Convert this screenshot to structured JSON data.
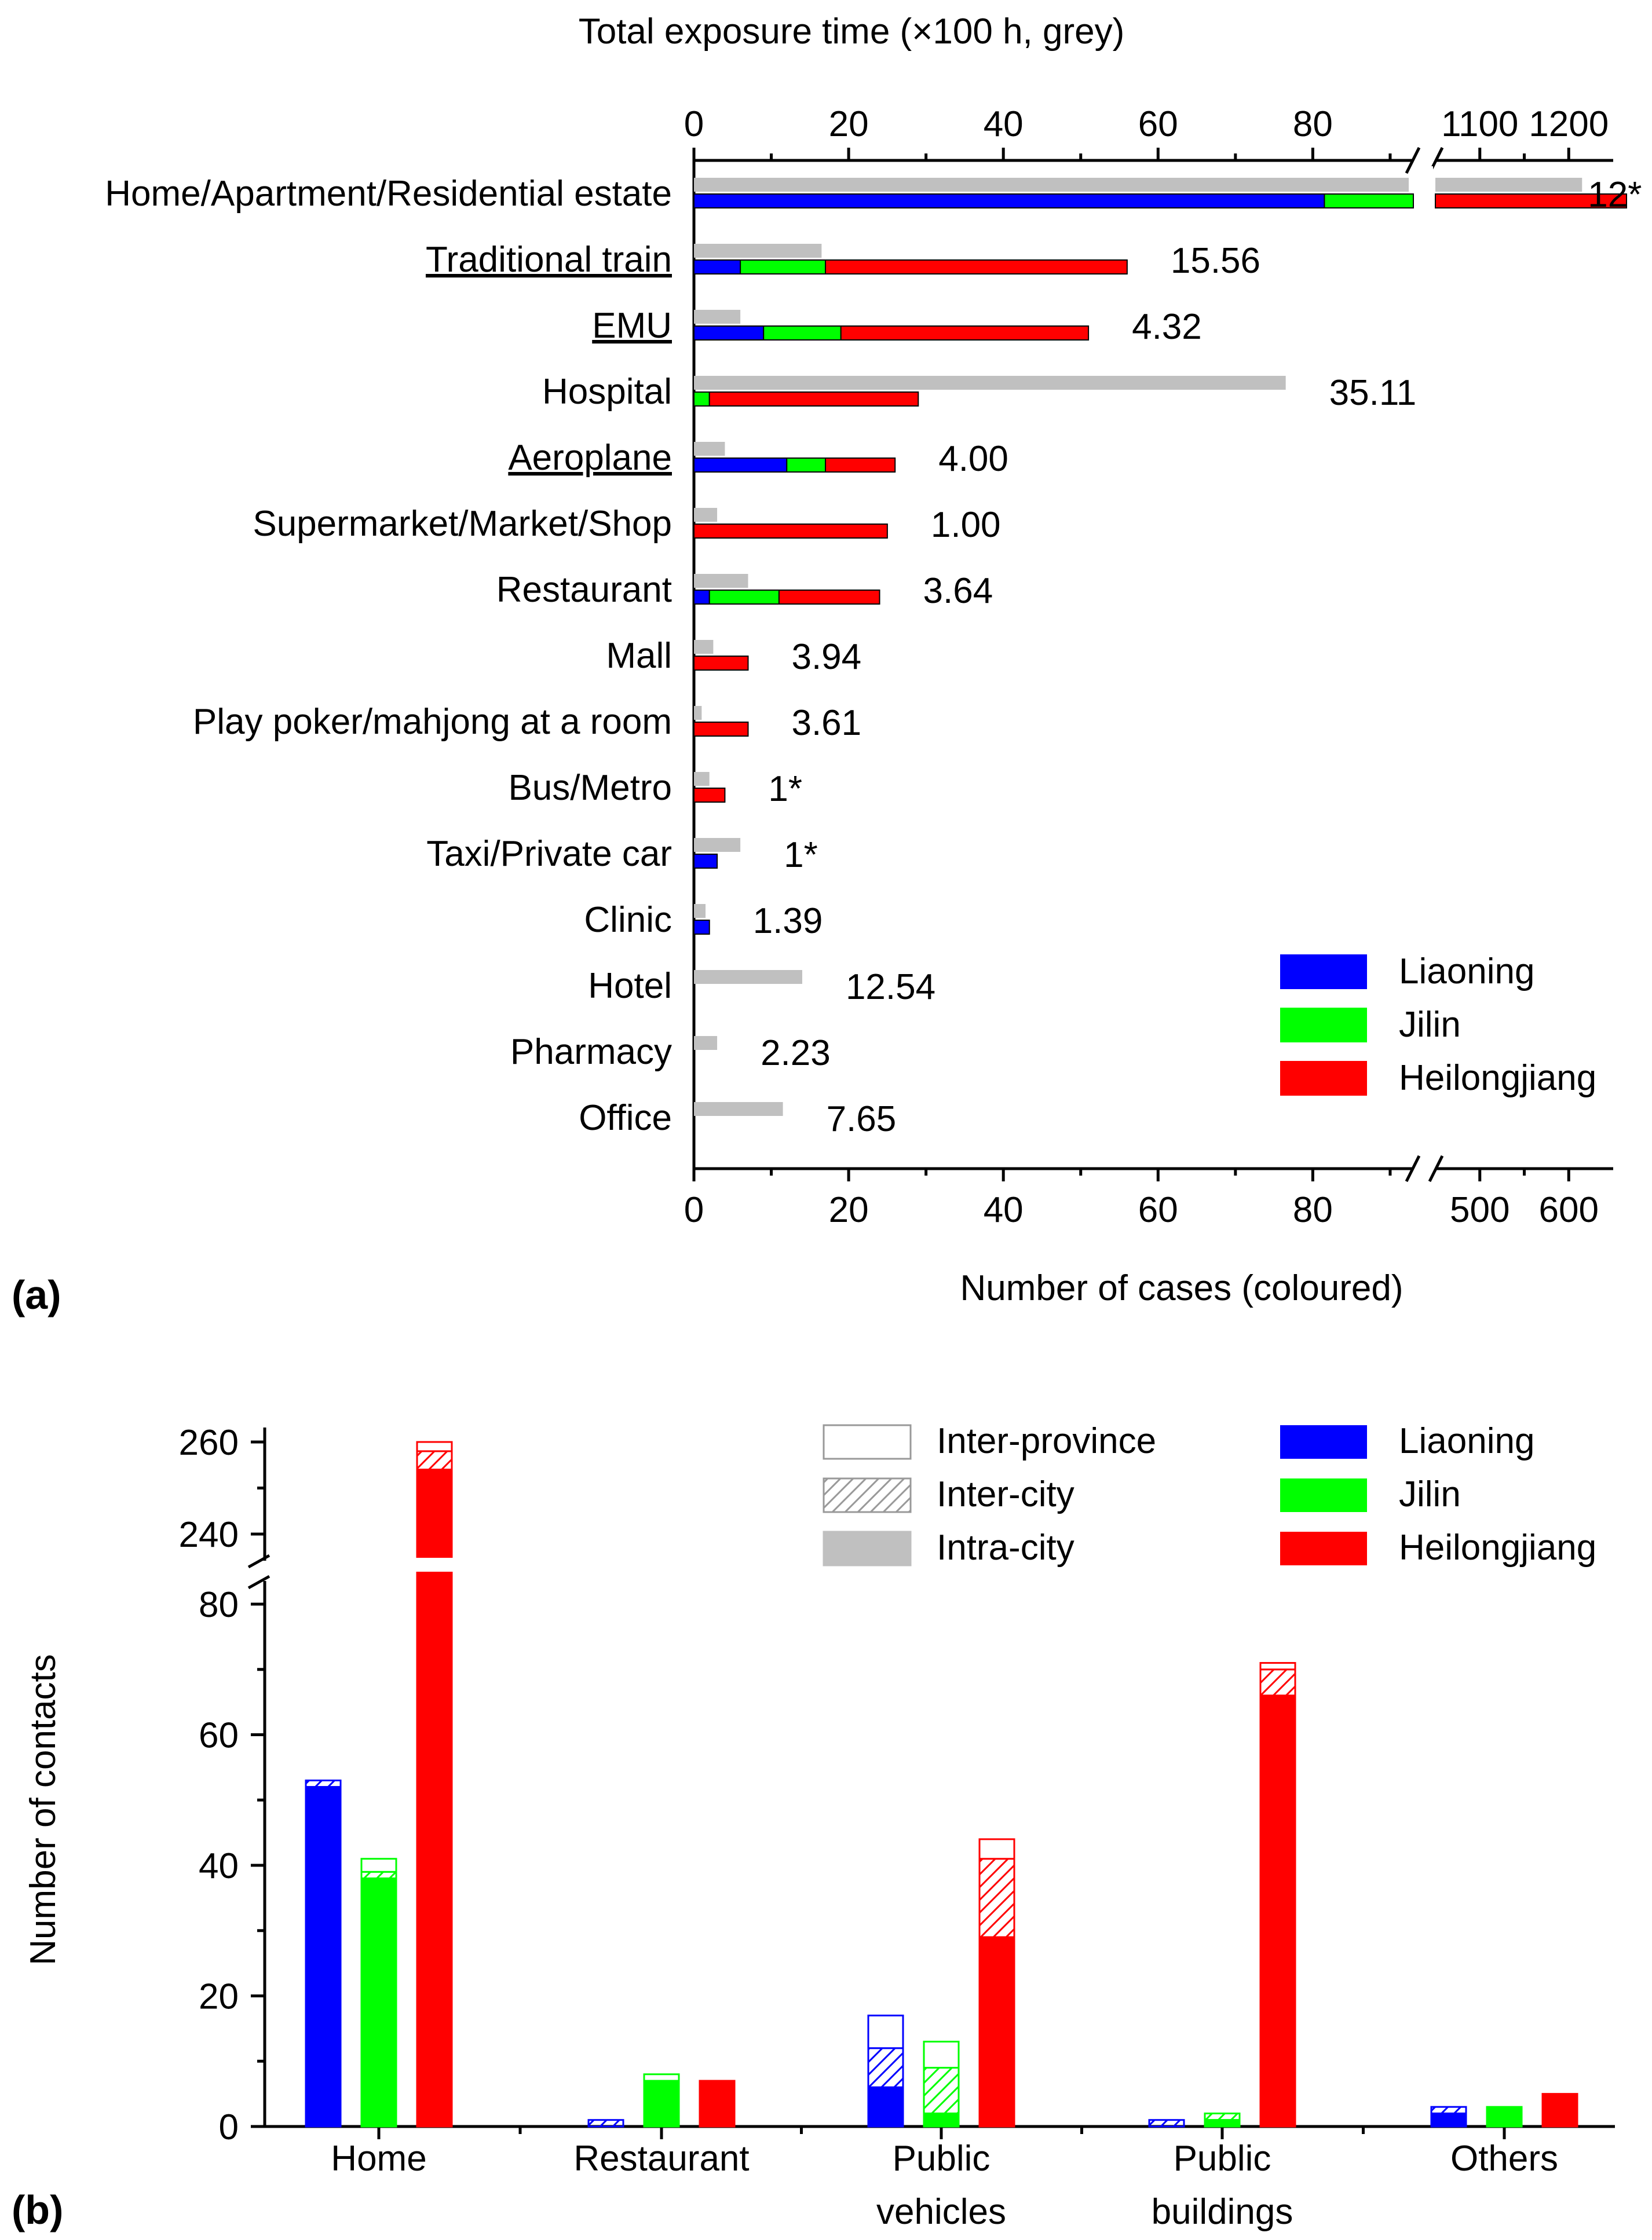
{
  "chart_data": [
    {
      "panel": "(a)",
      "type": "bar",
      "orientation": "horizontal",
      "stacked": true,
      "top_axis_title": "Total exposure time (×100 h, grey)",
      "bottom_axis_title": "Number of cases (coloured)",
      "top_ticks": [
        "0",
        "20",
        "40",
        "60",
        "80",
        "1100",
        "1200"
      ],
      "bottom_ticks": [
        "0",
        "20",
        "40",
        "60",
        "80",
        "500",
        "600"
      ],
      "axis_break": {
        "low_max": 93,
        "high_min": 450
      },
      "xlim": [
        0,
        650
      ],
      "legend": {
        "position": "bottom-right",
        "entries": [
          "Liaoning",
          "Jilin",
          "Heilongjiang"
        ]
      },
      "colors": {
        "Liaoning": "#0000ff",
        "Jilin": "#00ff00",
        "Heilongjiang": "#ff0000",
        "exposure": "#c0c0c0"
      },
      "categories": [
        {
          "label": "Home/Apartment/Residential estate",
          "underline": false,
          "exposure": 1190,
          "cases": [
            81.5,
            11.5,
            572
          ],
          "annotation": "12*"
        },
        {
          "label": "Traditional train",
          "underline": true,
          "exposure": 16.5,
          "cases": [
            6,
            11,
            39
          ],
          "annotation": "15.56"
        },
        {
          "label": "EMU",
          "underline": true,
          "exposure": 6,
          "cases": [
            9,
            10,
            32
          ],
          "annotation": "4.32"
        },
        {
          "label": "Hospital",
          "underline": false,
          "exposure": 76.5,
          "cases": [
            0,
            2,
            27
          ],
          "annotation": "35.11"
        },
        {
          "label": "Aeroplane",
          "underline": true,
          "exposure": 4,
          "cases": [
            12,
            5,
            9
          ],
          "annotation": "4.00"
        },
        {
          "label": "Supermarket/Market/Shop",
          "underline": false,
          "exposure": 3,
          "cases": [
            0,
            0,
            25
          ],
          "annotation": "1.00"
        },
        {
          "label": "Restaurant",
          "underline": false,
          "exposure": 7,
          "cases": [
            2,
            9,
            13
          ],
          "annotation": "3.64"
        },
        {
          "label": "Mall",
          "underline": false,
          "exposure": 2.5,
          "cases": [
            0,
            0,
            7
          ],
          "annotation": "3.94"
        },
        {
          "label": "Play poker/mahjong at a room",
          "underline": false,
          "exposure": 1,
          "cases": [
            0,
            0,
            7
          ],
          "annotation": "3.61"
        },
        {
          "label": "Bus/Metro",
          "underline": false,
          "exposure": 2,
          "cases": [
            0,
            0,
            4
          ],
          "annotation": "1*"
        },
        {
          "label": "Taxi/Private car",
          "underline": false,
          "exposure": 6,
          "cases": [
            3,
            0,
            0
          ],
          "annotation": "1*"
        },
        {
          "label": "Clinic",
          "underline": false,
          "exposure": 1.5,
          "cases": [
            2,
            0,
            0
          ],
          "annotation": "1.39"
        },
        {
          "label": "Hotel",
          "underline": false,
          "exposure": 14,
          "cases": [
            0,
            0,
            0
          ],
          "annotation": "12.54"
        },
        {
          "label": "Pharmacy",
          "underline": false,
          "exposure": 3,
          "cases": [
            0,
            0,
            0
          ],
          "annotation": "2.23"
        },
        {
          "label": "Office",
          "underline": false,
          "exposure": 11.5,
          "cases": [
            0,
            0,
            0
          ],
          "annotation": "7.65"
        }
      ]
    },
    {
      "panel": "(b)",
      "type": "bar",
      "stacked": true,
      "ylabel": "Number of contacts",
      "y_ticks_low": [
        "0",
        "20",
        "40",
        "60",
        "80"
      ],
      "y_ticks_high": [
        "240",
        "260"
      ],
      "axis_break": {
        "low_max": 86,
        "high_min": 233
      },
      "ylim_low": [
        0,
        86
      ],
      "ylim_high": [
        233,
        262
      ],
      "groups": [
        "Home",
        "Restaurant",
        "Public\nvehicles",
        "Public\nbuildings",
        "Others"
      ],
      "provinces": [
        "Liaoning",
        "Jilin",
        "Heilongjiang"
      ],
      "colors": {
        "Liaoning": "#0000ff",
        "Jilin": "#00ff00",
        "Heilongjiang": "#ff0000"
      },
      "legend": {
        "position": "top-right",
        "pattern_entries": [
          "Inter-province",
          "Inter-city",
          "Intra-city"
        ],
        "color_entries": [
          "Liaoning",
          "Jilin",
          "Heilongjiang"
        ]
      },
      "series_layers": [
        "Intra-city",
        "Inter-city",
        "Inter-province"
      ],
      "values": [
        [
          [
            52,
            1,
            0
          ],
          [
            38,
            1,
            2
          ],
          [
            254,
            4,
            2
          ]
        ],
        [
          [
            0,
            1,
            0
          ],
          [
            7,
            0,
            1
          ],
          [
            7,
            0,
            0
          ]
        ],
        [
          [
            6,
            6,
            5
          ],
          [
            2,
            7,
            4
          ],
          [
            29,
            12,
            3
          ]
        ],
        [
          [
            0,
            1,
            0
          ],
          [
            1,
            1,
            0
          ],
          [
            66,
            4,
            1
          ]
        ],
        [
          [
            2,
            1,
            0
          ],
          [
            3,
            0,
            0
          ],
          [
            5,
            0,
            0
          ]
        ]
      ]
    }
  ]
}
